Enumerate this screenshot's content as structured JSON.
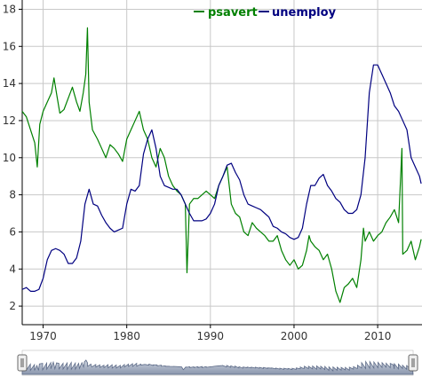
{
  "chart_data": {
    "type": "line",
    "xlim": [
      1967.5,
      2015.3
    ],
    "ylim": [
      1,
      18.5
    ],
    "grid": true,
    "legend_position": "top-right",
    "x_ticks": [
      1970,
      1980,
      1990,
      2000,
      2010
    ],
    "x_tick_labels": [
      "1970",
      "1980",
      "1990",
      "2000",
      "2010"
    ],
    "y_ticks": [
      2,
      4,
      6,
      8,
      10,
      12,
      14,
      16,
      18
    ],
    "y_tick_labels": [
      "2",
      "4",
      "6",
      "8",
      "10",
      "12",
      "14",
      "16",
      "18"
    ],
    "series": [
      {
        "name": "psavert",
        "color": "#008000",
        "x": [
          1967.5,
          1968,
          1968.5,
          1969,
          1969.3,
          1969.6,
          1970,
          1970.5,
          1971,
          1971.3,
          1971.7,
          1972,
          1972.5,
          1973,
          1973.5,
          1974,
          1974.4,
          1974.8,
          1975.1,
          1975.3,
          1975.5,
          1975.9,
          1976.5,
          1977,
          1977.5,
          1978,
          1978.5,
          1979,
          1979.5,
          1980,
          1980.5,
          1981,
          1981.5,
          1982,
          1982.5,
          1983,
          1983.5,
          1984,
          1984.5,
          1985,
          1985.5,
          1986,
          1986.5,
          1987,
          1987.2,
          1987.5,
          1988,
          1988.5,
          1989,
          1989.5,
          1990,
          1990.5,
          1991,
          1991.5,
          1992,
          1992.5,
          1993,
          1993.5,
          1994,
          1994.5,
          1995,
          1995.5,
          1996,
          1996.5,
          1997,
          1997.5,
          1998,
          1998.5,
          1999,
          1999.5,
          2000,
          2000.5,
          2001,
          2001.5,
          2001.8,
          2002,
          2002.5,
          2003,
          2003.5,
          2004,
          2004.5,
          2005,
          2005.5,
          2006,
          2006.5,
          2007,
          2007.5,
          2008,
          2008.3,
          2008.5,
          2009,
          2009.5,
          2010,
          2010.5,
          2011,
          2011.5,
          2012,
          2012.5,
          2012.9,
          2013,
          2013.5,
          2014,
          2014.5,
          2015,
          2015.2
        ],
        "values": [
          12.5,
          12.2,
          11.5,
          10.8,
          9.5,
          11.8,
          12.5,
          13.0,
          13.5,
          14.3,
          13.2,
          12.4,
          12.6,
          13.2,
          13.8,
          13.0,
          12.5,
          13.5,
          14.5,
          17.0,
          13.0,
          11.5,
          11.0,
          10.5,
          10.0,
          10.7,
          10.5,
          10.2,
          9.8,
          11.0,
          11.5,
          12.0,
          12.5,
          11.5,
          11.0,
          10.0,
          9.5,
          10.5,
          10.0,
          9.0,
          8.5,
          8.2,
          8.0,
          7.5,
          3.8,
          7.5,
          7.8,
          7.8,
          8.0,
          8.2,
          8.0,
          7.8,
          8.5,
          9.0,
          9.5,
          7.5,
          7.0,
          6.8,
          6.0,
          5.8,
          6.5,
          6.2,
          6.0,
          5.8,
          5.5,
          5.5,
          5.8,
          5.0,
          4.5,
          4.2,
          4.5,
          4.0,
          4.2,
          5.0,
          5.8,
          5.5,
          5.2,
          5.0,
          4.5,
          4.8,
          4.0,
          2.8,
          2.2,
          3.0,
          3.2,
          3.5,
          3.0,
          4.5,
          6.2,
          5.5,
          6.0,
          5.5,
          5.8,
          6.0,
          6.5,
          6.8,
          7.2,
          6.5,
          10.5,
          4.8,
          5.0,
          5.5,
          4.5,
          5.2,
          5.6
        ]
      },
      {
        "name": "unemploy",
        "color": "#000080",
        "x": [
          1967.5,
          1968,
          1968.5,
          1969,
          1969.5,
          1970,
          1970.5,
          1971,
          1971.5,
          1972,
          1972.5,
          1973,
          1973.5,
          1974,
          1974.5,
          1975,
          1975.5,
          1976,
          1976.5,
          1977,
          1977.5,
          1978,
          1978.5,
          1979,
          1979.5,
          1980,
          1980.5,
          1981,
          1981.5,
          1982,
          1982.5,
          1983,
          1983.5,
          1984,
          1984.5,
          1985,
          1985.5,
          1986,
          1986.5,
          1987,
          1987.5,
          1988,
          1988.5,
          1989,
          1989.5,
          1990,
          1990.5,
          1991,
          1991.5,
          1992,
          1992.5,
          1993,
          1993.5,
          1994,
          1994.5,
          1995,
          1995.5,
          1996,
          1996.5,
          1997,
          1997.5,
          1998,
          1998.5,
          1999,
          1999.5,
          2000,
          2000.5,
          2001,
          2001.5,
          2002,
          2002.5,
          2003,
          2003.5,
          2004,
          2004.5,
          2005,
          2005.5,
          2006,
          2006.5,
          2007,
          2007.5,
          2008,
          2008.5,
          2009,
          2009.5,
          2010,
          2010.5,
          2011,
          2011.5,
          2012,
          2012.5,
          2013,
          2013.5,
          2014,
          2014.5,
          2015,
          2015.2
        ],
        "values": [
          2.9,
          3.0,
          2.8,
          2.8,
          2.9,
          3.5,
          4.5,
          5.0,
          5.1,
          5.0,
          4.8,
          4.3,
          4.3,
          4.6,
          5.5,
          7.5,
          8.3,
          7.5,
          7.4,
          6.9,
          6.5,
          6.2,
          6.0,
          6.1,
          6.2,
          7.5,
          8.3,
          8.2,
          8.5,
          10.2,
          11.0,
          11.5,
          10.5,
          9.0,
          8.5,
          8.4,
          8.3,
          8.3,
          8.0,
          7.5,
          7.0,
          6.6,
          6.6,
          6.6,
          6.7,
          7.0,
          7.5,
          8.5,
          9.0,
          9.6,
          9.7,
          9.2,
          8.8,
          8.0,
          7.5,
          7.4,
          7.3,
          7.2,
          7.0,
          6.8,
          6.3,
          6.2,
          6.0,
          5.9,
          5.7,
          5.6,
          5.7,
          6.2,
          7.5,
          8.5,
          8.5,
          8.9,
          9.1,
          8.5,
          8.2,
          7.8,
          7.6,
          7.2,
          7.0,
          7.0,
          7.2,
          8.0,
          10.0,
          13.5,
          15.0,
          15.0,
          14.5,
          14.0,
          13.5,
          12.8,
          12.5,
          12.0,
          11.5,
          10.0,
          9.5,
          9.0,
          8.6
        ]
      }
    ]
  },
  "range_selector": {
    "fill_color": "#a7b1c4",
    "handle_left_label": "range-start",
    "handle_right_label": "range-end"
  }
}
